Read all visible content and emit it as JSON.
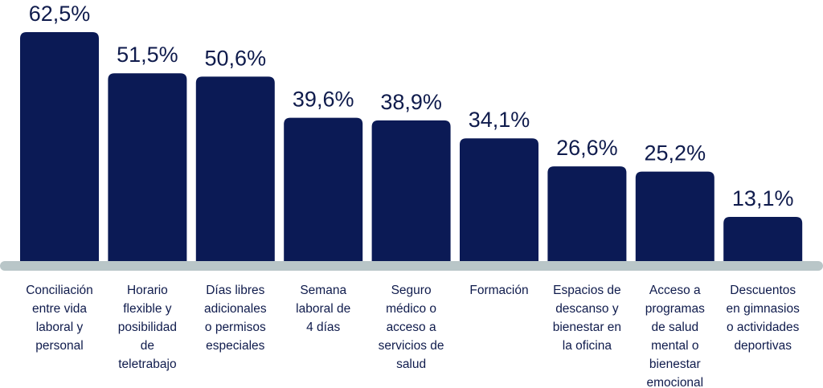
{
  "colors": {
    "bar": "#0b1a55",
    "baseline": "#b9c6c8",
    "text": "#0f1b4c"
  },
  "chart_data": {
    "type": "bar",
    "categories": [
      "Conciliación entre vida laboral y personal",
      "Horario flexible y posibilidad de teletrabajo",
      "Días libres adicionales o permisos especiales",
      "Semana laboral de 4 días",
      "Seguro médico o acceso a servicios de salud",
      "Formación",
      "Espacios de descanso y bienestar en la oficina",
      "Acceso a programas de salud mental o bienestar emocional",
      "Descuentos en gimnasios o actividades deportivas"
    ],
    "category_lines": [
      [
        "Conciliación",
        "entre vida",
        "laboral y",
        "personal"
      ],
      [
        "Horario",
        "flexible y",
        "posibilidad",
        "de",
        "teletrabajo"
      ],
      [
        "Días libres",
        "adicionales",
        "o permisos",
        "especiales"
      ],
      [
        "Semana",
        "laboral de",
        "4 días"
      ],
      [
        "Seguro",
        "médico o",
        "acceso a",
        "servicios de",
        "salud"
      ],
      [
        "Formación"
      ],
      [
        "Espacios de",
        "descanso y",
        "bienestar en",
        "la oficina"
      ],
      [
        "Acceso a",
        "programas",
        "de salud",
        "mental o",
        "bienestar",
        "emocional"
      ],
      [
        "Descuentos",
        "en gimnasios",
        "o actividades",
        "deportivas"
      ]
    ],
    "values": [
      62.5,
      51.5,
      50.6,
      39.6,
      38.9,
      34.1,
      26.6,
      25.2,
      13.1
    ],
    "value_labels": [
      "62,5%",
      "51,5%",
      "50,6%",
      "39,6%",
      "38,9%",
      "34,1%",
      "26,6%",
      "25,2%",
      "13,1%"
    ],
    "ylim": [
      0,
      62.5
    ],
    "grid": false,
    "legend": "none"
  }
}
